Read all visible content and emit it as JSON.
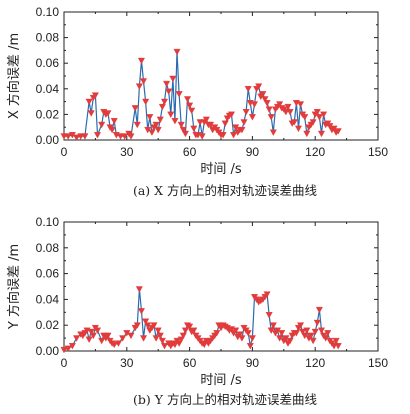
{
  "chart_data": [
    {
      "type": "line",
      "caption": "(a) X 方向上的相对轨迹误差曲线",
      "ylabel": "X 方向误差 /m",
      "xlabel": "时间 /s",
      "xlim": [
        0,
        150
      ],
      "ylim": [
        0,
        0.1
      ],
      "x_ticks": [
        "0",
        "30",
        "60",
        "90",
        "120",
        "150"
      ],
      "y_ticks": [
        "0.00",
        "0.02",
        "0.04",
        "0.06",
        "0.08",
        "0.10"
      ],
      "grid": false,
      "colors": {
        "line": "#2a6bb0",
        "marker": "#e23b3b"
      },
      "series": [
        {
          "x": [
            0,
            2,
            4,
            6,
            8,
            10,
            12,
            13,
            14,
            15,
            16,
            18,
            19,
            20,
            21,
            22,
            23,
            24,
            25,
            27,
            29,
            31,
            32,
            34,
            35,
            36,
            37,
            38,
            39,
            40,
            41,
            42,
            43,
            44,
            45,
            46,
            47,
            48,
            49,
            50,
            51,
            52,
            53,
            54,
            55,
            56,
            57,
            58,
            59,
            60,
            61,
            62,
            63,
            64,
            65,
            66,
            67,
            68,
            69,
            70,
            71,
            72,
            73,
            74,
            75,
            76,
            77,
            78,
            79,
            80,
            81,
            82,
            83,
            84,
            85,
            86,
            87,
            88,
            89,
            90,
            91,
            92,
            93,
            94,
            95,
            96,
            97,
            98,
            99,
            100,
            101,
            102,
            103,
            104,
            105,
            106,
            107,
            108,
            109,
            110,
            111,
            112,
            113,
            114,
            115,
            116,
            117,
            118,
            119,
            120,
            121,
            122,
            123,
            124,
            125,
            126,
            127,
            128,
            129,
            130,
            131
          ],
          "values": [
            0.003,
            0.003,
            0.004,
            0.002,
            0.003,
            0.003,
            0.03,
            0.021,
            0.033,
            0.035,
            0.004,
            0.012,
            0.022,
            0.02,
            0.021,
            0.01,
            0.008,
            0.015,
            0.004,
            0.003,
            0.003,
            0.005,
            0.003,
            0.025,
            0.012,
            0.042,
            0.062,
            0.046,
            0.03,
            0.008,
            0.018,
            0.006,
            0.01,
            0.012,
            0.008,
            0.016,
            0.026,
            0.03,
            0.044,
            0.038,
            0.02,
            0.048,
            0.015,
            0.069,
            0.036,
            0.012,
            0.008,
            0.005,
            0.032,
            0.027,
            0.023,
            0.009,
            0.004,
            0.004,
            0.014,
            0.003,
            0.014,
            0.016,
            0.012,
            0.012,
            0.008,
            0.01,
            0.008,
            0.006,
            0.004,
            0.004,
            0.013,
            0.017,
            0.019,
            0.02,
            0.004,
            0.01,
            0.006,
            0.008,
            0.008,
            0.014,
            0.022,
            0.04,
            0.029,
            0.018,
            0.028,
            0.04,
            0.042,
            0.034,
            0.036,
            0.032,
            0.029,
            0.024,
            0.018,
            0.006,
            0.024,
            0.026,
            0.028,
            0.025,
            0.024,
            0.022,
            0.026,
            0.022,
            0.013,
            0.014,
            0.029,
            0.009,
            0.028,
            0.02,
            0.018,
            0.005,
            0.01,
            0.012,
            0.014,
            0.02,
            0.022,
            0.018,
            0.005,
            0.02,
            0.012,
            0.013,
            0.011,
            0.008,
            0.009,
            0.006,
            0.007
          ]
        }
      ]
    },
    {
      "type": "line",
      "caption": "(b) Y 方向上的相对轨迹误差曲线",
      "ylabel": "Y 方向误差 /m",
      "xlabel": "时间 /s",
      "xlim": [
        0,
        150
      ],
      "ylim": [
        0,
        0.1
      ],
      "x_ticks": [
        "0",
        "30",
        "60",
        "90",
        "120",
        "150"
      ],
      "y_ticks": [
        "0.00",
        "0.02",
        "0.04",
        "0.06",
        "0.08",
        "0.10"
      ],
      "grid": false,
      "colors": {
        "line": "#2a6bb0",
        "marker": "#e23b3b"
      },
      "series": [
        {
          "x": [
            0,
            2,
            4,
            6,
            8,
            9,
            10,
            11,
            12,
            13,
            14,
            15,
            16,
            18,
            19,
            20,
            21,
            22,
            23,
            24,
            26,
            28,
            30,
            32,
            34,
            35,
            36,
            37,
            38,
            39,
            40,
            41,
            42,
            43,
            44,
            45,
            46,
            47,
            48,
            50,
            51,
            52,
            53,
            54,
            55,
            56,
            57,
            58,
            59,
            60,
            61,
            62,
            63,
            64,
            65,
            66,
            67,
            68,
            69,
            70,
            71,
            72,
            73,
            74,
            75,
            76,
            77,
            78,
            79,
            80,
            81,
            82,
            83,
            84,
            85,
            86,
            87,
            88,
            89,
            90,
            91,
            92,
            93,
            94,
            95,
            96,
            97,
            98,
            99,
            100,
            101,
            102,
            103,
            104,
            105,
            106,
            107,
            108,
            109,
            110,
            111,
            112,
            113,
            114,
            115,
            116,
            117,
            118,
            119,
            120,
            121,
            122,
            123,
            124,
            125,
            126,
            127,
            128,
            129,
            130,
            131
          ],
          "values": [
            0.001,
            0.002,
            0.004,
            0.01,
            0.013,
            0.012,
            0.014,
            0.016,
            0.009,
            0.015,
            0.012,
            0.018,
            0.016,
            0.008,
            0.012,
            0.01,
            0.012,
            0.008,
            0.006,
            0.005,
            0.006,
            0.01,
            0.014,
            0.012,
            0.018,
            0.02,
            0.048,
            0.031,
            0.01,
            0.023,
            0.02,
            0.016,
            0.018,
            0.02,
            0.01,
            0.016,
            0.012,
            0.008,
            0.004,
            0.006,
            0.004,
            0.006,
            0.005,
            0.008,
            0.006,
            0.009,
            0.012,
            0.016,
            0.02,
            0.019,
            0.015,
            0.016,
            0.012,
            0.01,
            0.008,
            0.006,
            0.005,
            0.008,
            0.006,
            0.008,
            0.01,
            0.012,
            0.014,
            0.02,
            0.018,
            0.02,
            0.019,
            0.018,
            0.016,
            0.017,
            0.014,
            0.016,
            0.011,
            0.013,
            0.01,
            0.018,
            0.016,
            0.014,
            0.004,
            0.01,
            0.042,
            0.04,
            0.038,
            0.039,
            0.04,
            0.042,
            0.044,
            0.028,
            0.016,
            0.02,
            0.014,
            0.016,
            0.01,
            0.014,
            0.008,
            0.01,
            0.006,
            0.008,
            0.012,
            0.014,
            0.014,
            0.018,
            0.02,
            0.015,
            0.012,
            0.016,
            0.01,
            0.012,
            0.008,
            0.015,
            0.022,
            0.032,
            0.016,
            0.012,
            0.01,
            0.014,
            0.008,
            0.006,
            0.004,
            0.008,
            0.004
          ]
        }
      ]
    }
  ]
}
